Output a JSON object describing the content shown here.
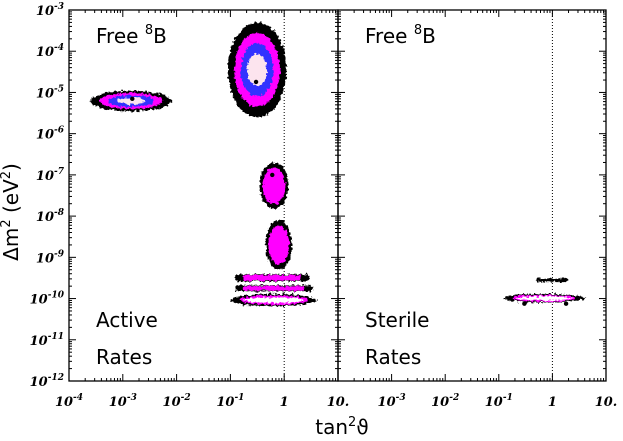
{
  "chart_data": {
    "type": "contour",
    "x_axis": {
      "label_base": "tan",
      "label_sup": "2",
      "label_tail": "ϑ",
      "scale": "log",
      "range": [
        0.0001,
        10
      ],
      "ticks": [
        {
          "value": 0.0001,
          "base": "10",
          "exp": "-4"
        },
        {
          "value": 0.001,
          "base": "10",
          "exp": "-3"
        },
        {
          "value": 0.01,
          "base": "10",
          "exp": "-2"
        },
        {
          "value": 0.1,
          "base": "10",
          "exp": "-1"
        },
        {
          "value": 1,
          "base": "1",
          "exp": ""
        },
        {
          "value": 10,
          "base": "10.",
          "exp": ""
        }
      ]
    },
    "y_axis": {
      "label_prefix": "Δm",
      "label_sup": "2",
      "label_mid": " (eV",
      "label_sup2": "2",
      "label_tail": ")",
      "scale": "log",
      "range": [
        1e-12,
        0.001
      ],
      "ticks": [
        {
          "value": 0.001,
          "base": "10",
          "exp": "-3"
        },
        {
          "value": 0.0001,
          "base": "10",
          "exp": "-4"
        },
        {
          "value": 1e-05,
          "base": "10",
          "exp": "-5"
        },
        {
          "value": 1e-06,
          "base": "10",
          "exp": "-6"
        },
        {
          "value": 1e-07,
          "base": "10",
          "exp": "-7"
        },
        {
          "value": 1e-08,
          "base": "10",
          "exp": "-8"
        },
        {
          "value": 1e-09,
          "base": "10",
          "exp": "-9"
        },
        {
          "value": 1e-10,
          "base": "10",
          "exp": "-10"
        },
        {
          "value": 1e-11,
          "base": "10",
          "exp": "-11"
        },
        {
          "value": 1e-12,
          "base": "10",
          "exp": "-12"
        }
      ]
    },
    "reference_line_x": 1,
    "colors": {
      "outer": "#000000",
      "mid": "#ff00ff",
      "inner": "#3030ff",
      "core": "#fce4ee",
      "best_fit": "#000000"
    },
    "panels": [
      {
        "title_prefix": "Free ",
        "title_sup": "8",
        "title_tail": "B",
        "label_line1": "Active",
        "label_line2": "Rates",
        "regions": [
          {
            "kind": "ellipse",
            "cx": 0.0013,
            "cy": 7e-06,
            "x_span": [
              0.00025,
              0.008
            ],
            "y_span": [
              3.5e-06,
              1.1e-05
            ],
            "levels": 4
          },
          {
            "kind": "ellipse",
            "cx": 0.35,
            "cy": 2e-05,
            "x_span": [
              0.09,
              1.1
            ],
            "y_span": [
              2.5e-06,
              0.0005
            ],
            "levels": 4
          },
          {
            "kind": "ellipse",
            "cx": 0.6,
            "cy": 1e-07,
            "x_span": [
              0.35,
              1.2
            ],
            "y_span": [
              1.5e-08,
              2e-07
            ],
            "levels": 2
          },
          {
            "kind": "band",
            "cy": 2e-09,
            "x_span": [
              0.45,
              1.4
            ],
            "y_span": [
              5e-10,
              8e-09
            ],
            "levels": 2
          },
          {
            "kind": "band",
            "cy": 3.2e-10,
            "x_span": [
              0.12,
              3.0
            ],
            "y_span": [
              2.6e-10,
              3.9e-10
            ],
            "levels": 2
          },
          {
            "kind": "band",
            "cy": 1.8e-10,
            "x_span": [
              0.12,
              3.5
            ],
            "y_span": [
              1.5e-10,
              2.1e-10
            ],
            "levels": 2
          },
          {
            "kind": "ring",
            "cy": 9.5e-11,
            "x_span": [
              0.1,
              4.0
            ],
            "y_span": [
              6.5e-11,
              1.3e-10
            ],
            "levels": 3
          }
        ],
        "best_fit_points": [
          {
            "x": 0.0015,
            "y": 7e-06
          },
          {
            "x": 0.3,
            "y": 1.8e-05
          },
          {
            "x": 0.6,
            "y": 1e-07
          }
        ]
      },
      {
        "title_prefix": "Free ",
        "title_sup": "8",
        "title_tail": "B",
        "label_line1": "Sterile",
        "label_line2": "Rates",
        "regions": [
          {
            "kind": "band",
            "cy": 2.8e-10,
            "x_span": [
              0.5,
              2.0
            ],
            "y_span": [
              2.5e-10,
              3.1e-10
            ],
            "levels": 1
          },
          {
            "kind": "ring",
            "cy": 1.05e-10,
            "x_span": [
              0.12,
              4.0
            ],
            "y_span": [
              8e-11,
              1.3e-10
            ],
            "levels": 3
          }
        ],
        "best_fit_points": [
          {
            "x": 0.3,
            "y": 7.5e-11
          },
          {
            "x": 1.8,
            "y": 7.5e-11
          }
        ]
      }
    ]
  }
}
